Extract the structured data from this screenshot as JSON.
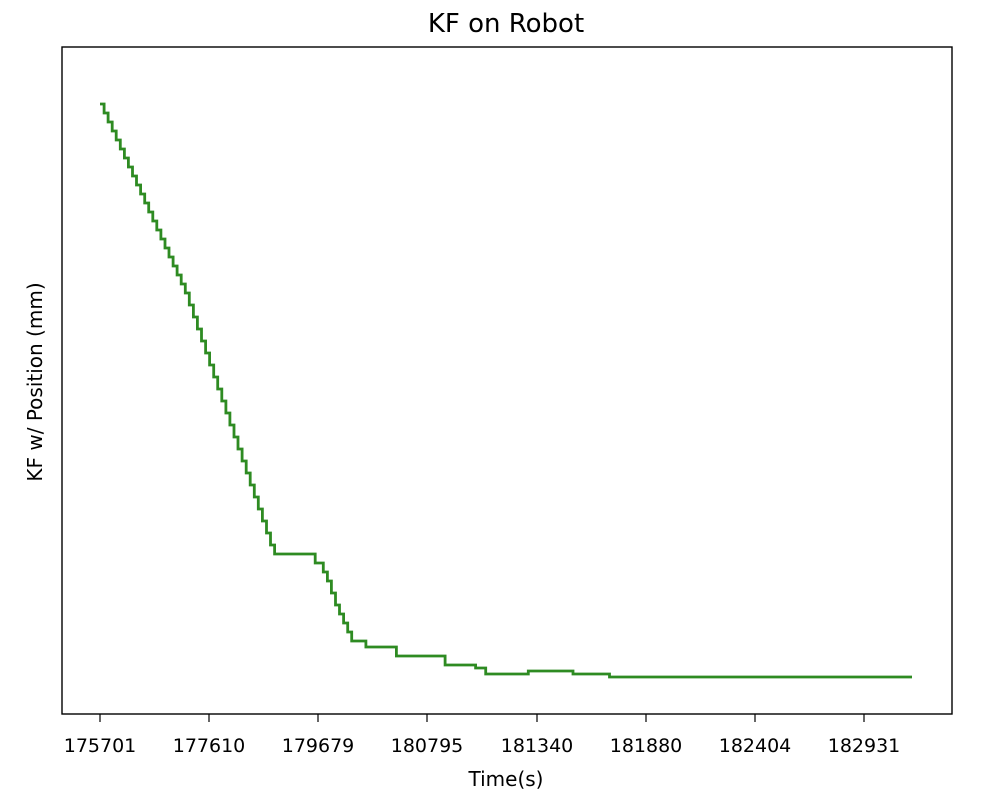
{
  "chart_data": {
    "type": "line",
    "title": "KF on Robot",
    "xlabel": "Time(s)",
    "ylabel": "KF w/ Position (mm)",
    "xtick_labels": [
      "175701",
      "177610",
      "179679",
      "180795",
      "181340",
      "181880",
      "182404",
      "182931"
    ],
    "line_color": "#2e8b22",
    "grid": false,
    "legend": "none",
    "x_index_range": [
      0,
      40
    ],
    "ylim": [
      0,
      100
    ],
    "series": [
      {
        "step": "post",
        "x": [
          0,
          0.2,
          0.4,
          0.6,
          0.8,
          1.0,
          1.2,
          1.4,
          1.6,
          1.8,
          2.0,
          2.2,
          2.4,
          2.6,
          2.8,
          3.0,
          3.2,
          3.4,
          3.6,
          3.8,
          4.0,
          4.2,
          4.4,
          4.6,
          4.8,
          5.0,
          5.2,
          5.4,
          5.6,
          5.8,
          6.0,
          6.2,
          6.4,
          6.6,
          6.8,
          7.0,
          7.2,
          7.4,
          7.6,
          7.8,
          8.0,
          8.2,
          8.4,
          8.6,
          8.8,
          9.0,
          9.2,
          9.4,
          9.6,
          9.8,
          10.0,
          10.3,
          10.6,
          11.0,
          11.2,
          11.4,
          11.6,
          11.8,
          12.0,
          12.2,
          12.4,
          12.6,
          12.8,
          13.1,
          13.6,
          14.1,
          14.6,
          15.0,
          15.5,
          16.0,
          17.0,
          18.0,
          18.5,
          19.0,
          19.7,
          20.0,
          20.6,
          21.1,
          21.8,
          22.6,
          23.3,
          23.8,
          24.3,
          25.1,
          26.0,
          26.6,
          27.5,
          28.5,
          29.2,
          29.9,
          30.7,
          31.2,
          31.8,
          32.4,
          33.0,
          33.5,
          34.5,
          35.3,
          36.0,
          37.0,
          38.0,
          39.0,
          39.5,
          40.0
        ],
        "y": [
          95.5,
          94.0,
          92.5,
          91.0,
          89.5,
          88.0,
          86.5,
          85.0,
          83.5,
          82.0,
          80.5,
          79.0,
          77.5,
          76.0,
          74.5,
          73.0,
          71.5,
          70.0,
          68.5,
          67.0,
          65.5,
          64.0,
          62.0,
          60.0,
          58.0,
          56.0,
          54.0,
          52.0,
          50.0,
          48.0,
          46.0,
          44.0,
          42.0,
          40.0,
          38.0,
          36.0,
          34.0,
          32.0,
          30.0,
          28.0,
          26.0,
          24.0,
          22.0,
          20.5,
          20.5,
          20.5,
          20.5,
          20.5,
          20.5,
          20.5,
          20.5,
          20.5,
          19.0,
          17.5,
          16.0,
          14.0,
          12.0,
          10.5,
          9.0,
          7.5,
          6.0,
          6.0,
          6.0,
          5.0,
          5.0,
          5.0,
          3.5,
          3.5,
          3.5,
          3.5,
          2.0,
          2.0,
          1.5,
          0.5,
          0.5,
          0.5,
          0.5,
          1.0,
          1.0,
          1.0,
          0.5,
          0.5,
          0.5,
          0.0,
          0.0,
          0.0,
          0.0,
          0.0,
          0.0,
          0.0,
          0.0,
          0.0,
          0.0,
          0.0,
          0.0,
          0.0,
          0.0,
          0.0,
          0.0,
          0.0,
          0.0,
          0.0,
          0.0,
          0.0
        ],
        "note_y": "relative position units (axis shows no y tick labels)"
      }
    ],
    "staircase": {
      "x": [
        0.0,
        0.2,
        0.4,
        0.6,
        0.8,
        1.0,
        1.2,
        1.4,
        1.6,
        1.8,
        2.0,
        2.2,
        2.4,
        2.6,
        2.8,
        3.0,
        3.2,
        3.4,
        3.6,
        3.8,
        4.0,
        4.2,
        4.4,
        4.6,
        4.8,
        5.0,
        5.2,
        5.4,
        5.6,
        5.8,
        6.0,
        6.2,
        6.4,
        6.6,
        6.8,
        7.0,
        7.2,
        7.4,
        7.6,
        7.8,
        8.0,
        8.2,
        8.4,
        8.6,
        8.8,
        9.0,
        9.2,
        9.4,
        9.6,
        9.8,
        10.0,
        10.2,
        10.4,
        10.6,
        10.8,
        11.0,
        11.2,
        11.4,
        11.6,
        11.8,
        12.0,
        12.2,
        12.4,
        12.6,
        12.8,
        13.0,
        13.2,
        13.4,
        13.6,
        13.8,
        14.0,
        14.2,
        14.4,
        14.6,
        14.8,
        15.0,
        15.2,
        15.4,
        15.6,
        15.8,
        16.0,
        16.2,
        16.4,
        16.6,
        16.8,
        17.0,
        17.2,
        17.4,
        17.6,
        17.8,
        18.0,
        18.2,
        18.4,
        18.6,
        18.8,
        19.0,
        19.2,
        19.4,
        19.6,
        19.8,
        20.0,
        20.2,
        20.4,
        20.6,
        20.8,
        21.0,
        21.2,
        21.4,
        21.6,
        21.8,
        22.0,
        22.2,
        22.4,
        22.6,
        22.8,
        23.0,
        23.2,
        23.4,
        23.6,
        23.8,
        24.0,
        24.2,
        24.4,
        24.6,
        24.8,
        25.0,
        25.2,
        25.4,
        25.6,
        25.8,
        26.0,
        26.2,
        26.4,
        26.6,
        26.8,
        27.0,
        27.2,
        27.4,
        27.6,
        27.8,
        28.0,
        28.2,
        28.4,
        28.6,
        28.8,
        29.0,
        29.2,
        29.4,
        29.6,
        29.8,
        30.0,
        30.2,
        30.4,
        30.6,
        30.8,
        31.0,
        31.2,
        31.4,
        31.6,
        31.8,
        32.0,
        32.2,
        32.4,
        32.6,
        32.8,
        33.0,
        33.2,
        33.4,
        33.6,
        33.8,
        34.0,
        34.2,
        34.4,
        34.6,
        34.8,
        35.0,
        35.2,
        35.4,
        35.6,
        35.8,
        36.0,
        36.2,
        36.4,
        36.6,
        36.8,
        37.0,
        37.2,
        37.4,
        37.6,
        37.8,
        38.0,
        38.2,
        38.4,
        38.6,
        38.8,
        39.0,
        39.2,
        39.4,
        39.6,
        39.8,
        40.0
      ]
    }
  }
}
